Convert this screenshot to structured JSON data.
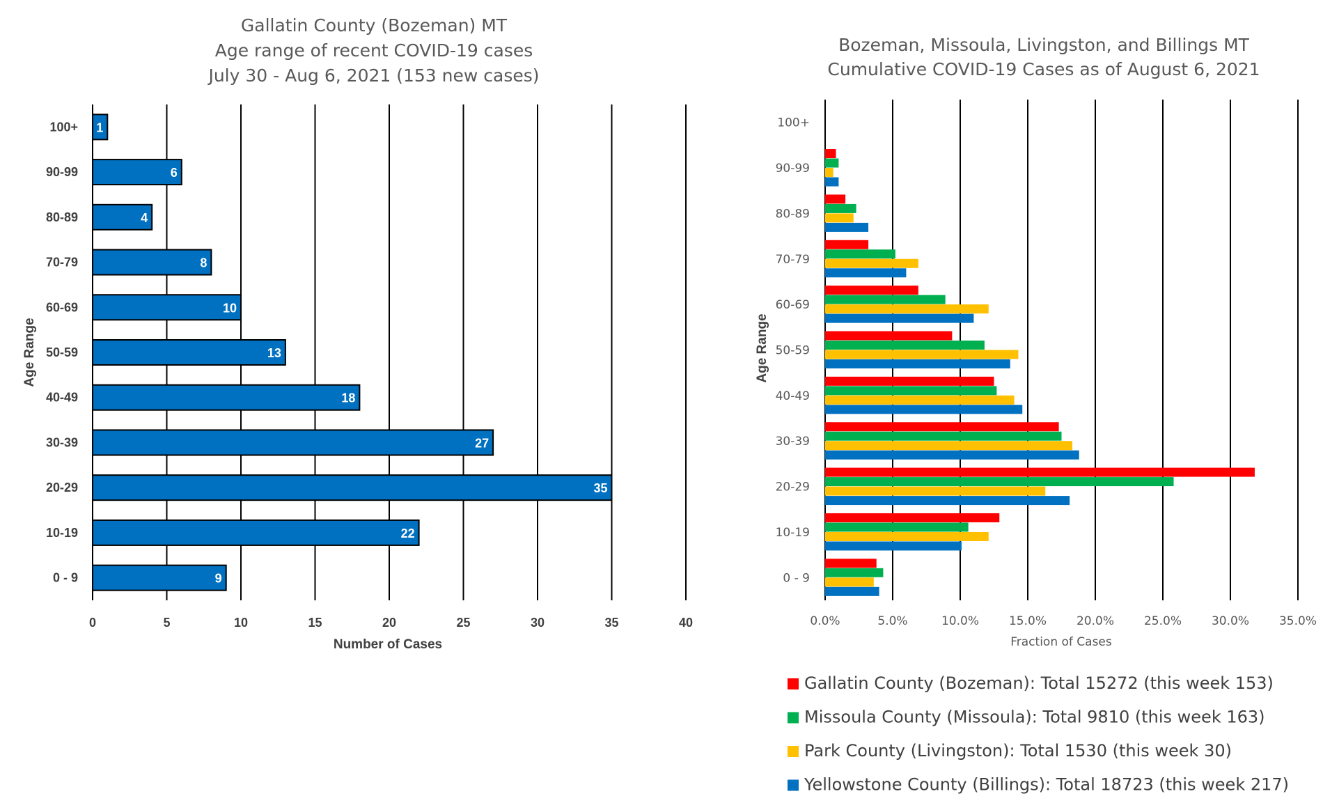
{
  "chart_data": [
    {
      "type": "bar",
      "orientation": "horizontal",
      "title_lines": [
        "Gallatin County (Bozeman) MT",
        "Age range of recent COVID-19 cases",
        "July 30 - Aug 6, 2021 (153 new cases)"
      ],
      "xlabel": "Number of Cases",
      "ylabel": "Age Range",
      "xlim": [
        0,
        40
      ],
      "xticks": [
        "0",
        "5",
        "10",
        "15",
        "20",
        "25",
        "30",
        "35",
        "40"
      ],
      "grid": "vertical",
      "categories": [
        "100+",
        "90-99",
        "80-89",
        "70-79",
        "60-69",
        "50-59",
        "40-49",
        "30-39",
        "20-29",
        "10-19",
        "0 - 9"
      ],
      "values": [
        1,
        6,
        4,
        8,
        10,
        13,
        18,
        27,
        35,
        22,
        9
      ],
      "value_labels": [
        "1",
        "6",
        "4",
        "8",
        "10",
        "13",
        "18",
        "27",
        "35",
        "22",
        "9"
      ],
      "color": "#0070C0"
    },
    {
      "type": "bar",
      "orientation": "horizontal",
      "title_lines": [
        "Bozeman, Missoula, Livingston, and Billings MT",
        "Cumulative COVID-19 Cases as of August 6, 2021"
      ],
      "xlabel": "Fraction of Cases",
      "ylabel": "Age Range",
      "xlim": [
        0,
        0.35
      ],
      "xticks": [
        "0.0%",
        "5.0%",
        "10.0%",
        "15.0%",
        "20.0%",
        "25.0%",
        "30.0%",
        "35.0%"
      ],
      "grid": "vertical",
      "legend_position": "bottom",
      "categories": [
        "100+",
        "90-99",
        "80-89",
        "70-79",
        "60-69",
        "50-59",
        "40-49",
        "30-39",
        "20-29",
        "10-19",
        "0 - 9"
      ],
      "series": [
        {
          "name": "Gallatin County (Bozeman): Total 15272 (this week 153)",
          "color": "#FF0000",
          "values": [
            0.0,
            0.008,
            0.015,
            0.032,
            0.069,
            0.094,
            0.125,
            0.173,
            0.318,
            0.129,
            0.038
          ]
        },
        {
          "name": "Missoula County (Missoula): Total 9810 (this week 163)",
          "color": "#00B050",
          "values": [
            0.0,
            0.01,
            0.023,
            0.052,
            0.089,
            0.118,
            0.127,
            0.175,
            0.258,
            0.106,
            0.043
          ]
        },
        {
          "name": "Park County (Livingston): Total 1530 (this week 30)",
          "color": "#FFC000",
          "values": [
            0.0,
            0.006,
            0.021,
            0.069,
            0.121,
            0.143,
            0.14,
            0.183,
            0.163,
            0.121,
            0.036
          ]
        },
        {
          "name": "Yellowstone County (Billings): Total 18723 (this week 217)",
          "color": "#0070C0",
          "values": [
            0.0,
            0.01,
            0.032,
            0.06,
            0.11,
            0.137,
            0.146,
            0.188,
            0.181,
            0.101,
            0.04
          ]
        }
      ]
    }
  ]
}
